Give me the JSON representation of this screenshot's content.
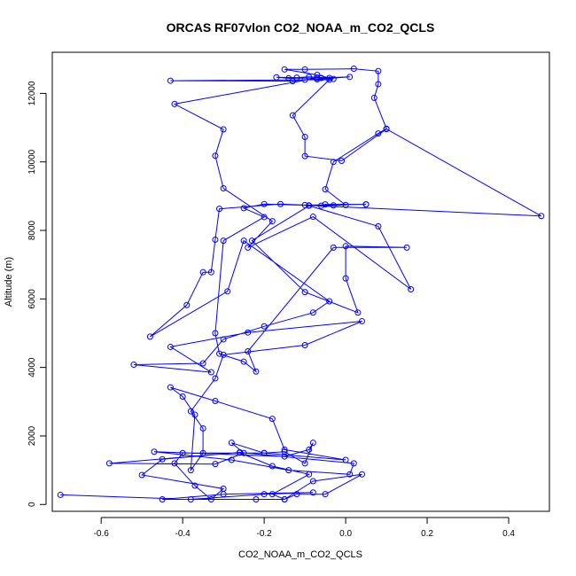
{
  "chart_data": {
    "type": "line",
    "title": "ORCAS RF07vlon CO2_NOAA_m_CO2_QCLS",
    "xlabel": "CO2_NOAA_m_CO2_QCLS",
    "ylabel": "Altitude (m)",
    "xlim": [
      -0.72,
      0.5
    ],
    "ylim": [
      -200,
      13200
    ],
    "x_ticks": [
      -0.6,
      -0.4,
      -0.2,
      0.0,
      0.2,
      0.4
    ],
    "x_tick_labels": [
      "-0.6",
      "-0.4",
      "-0.2",
      "0.0",
      "0.2",
      "0.4"
    ],
    "y_ticks": [
      0,
      2000,
      4000,
      6000,
      8000,
      10000,
      12000
    ],
    "y_tick_labels": [
      "0",
      "2000",
      "4000",
      "6000",
      "8000",
      "10000",
      "12000"
    ],
    "grid": false,
    "legend": "none",
    "series": [
      {
        "color": "#0000ff",
        "marker": "open-circle",
        "points": [
          [
            -0.7,
            280
          ],
          [
            -0.38,
            150
          ],
          [
            -0.2,
            300
          ],
          [
            -0.08,
            350
          ],
          [
            -0.3,
            300
          ],
          [
            -0.45,
            150
          ],
          [
            -0.22,
            150
          ],
          [
            -0.15,
            150
          ],
          [
            -0.12,
            300
          ],
          [
            -0.05,
            300
          ],
          [
            0.04,
            880
          ],
          [
            -0.08,
            680
          ],
          [
            -0.15,
            150
          ],
          [
            -0.18,
            300
          ],
          [
            -0.09,
            880
          ],
          [
            -0.18,
            1120
          ],
          [
            -0.26,
            1510
          ],
          [
            -0.26,
            1520
          ],
          [
            -0.45,
            1320
          ],
          [
            -0.5,
            860
          ],
          [
            -0.3,
            460
          ],
          [
            -0.33,
            150
          ],
          [
            -0.37,
            550
          ],
          [
            -0.42,
            1200
          ],
          [
            -0.4,
            1500
          ],
          [
            -0.2,
            1500
          ],
          [
            -0.15,
            1540
          ],
          [
            -0.1,
            1200
          ],
          [
            -0.08,
            1800
          ],
          [
            -0.09,
            1600
          ],
          [
            -0.15,
            1400
          ],
          [
            -0.47,
            1540
          ],
          [
            -0.28,
            1300
          ],
          [
            -0.14,
            1000
          ],
          [
            0.01,
            880
          ],
          [
            0.02,
            1200
          ],
          [
            -0.26,
            1520
          ],
          [
            -0.58,
            1200
          ],
          [
            -0.32,
            1180
          ],
          [
            -0.25,
            1500
          ],
          [
            -0.28,
            1800
          ],
          [
            -0.2,
            1500
          ],
          [
            0.0,
            1300
          ],
          [
            -0.15,
            1600
          ],
          [
            -0.18,
            2500
          ],
          [
            -0.32,
            3020
          ],
          [
            -0.43,
            3420
          ],
          [
            -0.4,
            3150
          ],
          [
            -0.37,
            2620
          ],
          [
            -0.38,
            1000
          ],
          [
            -0.35,
            1500
          ],
          [
            -0.35,
            2220
          ],
          [
            -0.38,
            2720
          ],
          [
            -0.32,
            3680
          ],
          [
            -0.3,
            4370
          ],
          [
            -0.1,
            4650
          ],
          [
            0.04,
            5350
          ],
          [
            -0.24,
            5020
          ],
          [
            -0.43,
            4600
          ],
          [
            -0.33,
            3860
          ],
          [
            -0.52,
            4080
          ],
          [
            -0.35,
            4120
          ],
          [
            -0.3,
            4820
          ],
          [
            -0.2,
            5200
          ],
          [
            -0.08,
            5600
          ],
          [
            -0.04,
            5930
          ],
          [
            -0.25,
            7700
          ],
          [
            -0.29,
            6220
          ],
          [
            -0.48,
            4900
          ],
          [
            -0.39,
            5820
          ],
          [
            -0.35,
            6780
          ],
          [
            -0.33,
            6780
          ],
          [
            -0.32,
            7730
          ],
          [
            -0.31,
            8630
          ],
          [
            -0.16,
            8770
          ],
          [
            -0.06,
            8720
          ],
          [
            -0.05,
            8760
          ],
          [
            0.05,
            8760
          ],
          [
            0.05,
            8760
          ],
          [
            -0.1,
            8740
          ],
          [
            -0.03,
            8730
          ],
          [
            0.0,
            8740
          ],
          [
            -0.05,
            9200
          ],
          [
            -0.03,
            10000
          ],
          [
            0.08,
            10830
          ],
          [
            0.1,
            10970
          ],
          [
            0.07,
            11870
          ],
          [
            0.08,
            12270
          ],
          [
            0.08,
            12650
          ],
          [
            0.02,
            12720
          ],
          [
            -0.1,
            12700
          ],
          [
            -0.15,
            12700
          ],
          [
            -0.07,
            12540
          ],
          [
            -0.04,
            12450
          ],
          [
            -0.09,
            12480
          ],
          [
            -0.12,
            12460
          ],
          [
            -0.17,
            12470
          ],
          [
            -0.14,
            12440
          ],
          [
            -0.06,
            12450
          ],
          [
            0.01,
            12480
          ],
          [
            -0.07,
            12410
          ],
          [
            -0.1,
            12400
          ],
          [
            -0.13,
            12360
          ],
          [
            -0.43,
            12370
          ],
          [
            -0.04,
            12400
          ],
          [
            -0.13,
            11360
          ],
          [
            -0.1,
            10730
          ],
          [
            -0.1,
            10170
          ],
          [
            -0.01,
            10030
          ],
          [
            0.1,
            10960
          ],
          [
            0.48,
            8420
          ],
          [
            -0.09,
            8730
          ],
          [
            -0.2,
            8770
          ],
          [
            -0.25,
            8650
          ],
          [
            -0.2,
            8390
          ],
          [
            -0.3,
            7700
          ],
          [
            -0.32,
            5000
          ],
          [
            -0.31,
            4400
          ],
          [
            -0.25,
            4170
          ],
          [
            -0.22,
            3880
          ],
          [
            -0.24,
            4470
          ],
          [
            -0.03,
            7500
          ],
          [
            0.15,
            7500
          ],
          [
            0.0,
            7540
          ],
          [
            0.0,
            6600
          ],
          [
            0.03,
            5600
          ],
          [
            -0.1,
            6200
          ],
          [
            -0.23,
            7700
          ],
          [
            -0.09,
            8720
          ],
          [
            0.08,
            8120
          ],
          [
            0.16,
            6280
          ],
          [
            -0.08,
            8400
          ],
          [
            -0.24,
            7500
          ],
          [
            -0.18,
            8270
          ],
          [
            -0.3,
            9230
          ],
          [
            -0.32,
            10180
          ],
          [
            -0.3,
            10950
          ],
          [
            -0.42,
            11690
          ],
          [
            -0.07,
            12450
          ],
          [
            -0.03,
            12420
          ]
        ]
      }
    ]
  }
}
